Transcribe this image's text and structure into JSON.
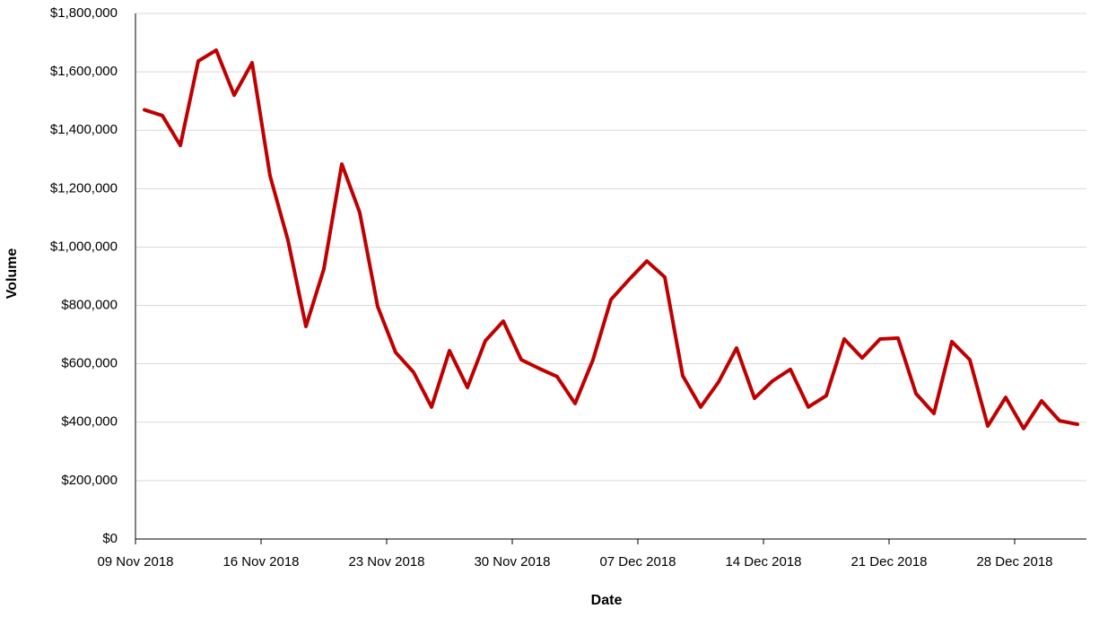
{
  "chart_data": {
    "type": "line",
    "x_label": "Date",
    "y_label": "Volume",
    "categories": [
      "09 Nov 2018",
      null,
      null,
      null,
      null,
      null,
      null,
      "16 Nov 2018",
      null,
      null,
      null,
      null,
      null,
      null,
      "23 Nov 2018",
      null,
      null,
      null,
      null,
      null,
      null,
      "30 Nov 2018",
      null,
      null,
      null,
      null,
      null,
      null,
      "07 Dec 2018",
      null,
      null,
      null,
      null,
      null,
      null,
      "14 Dec 2018",
      null,
      null,
      null,
      null,
      null,
      null,
      "21 Dec 2018",
      null,
      null,
      null,
      null,
      null,
      null,
      "28 Dec 2018",
      null,
      null,
      null
    ],
    "series": [
      {
        "name": "Volume",
        "color": "#c00000",
        "values": [
          1470000,
          1450000,
          1348000,
          1637000,
          1674000,
          1520000,
          1631000,
          1244000,
          1023000,
          728000,
          925000,
          1284000,
          1118000,
          796000,
          639000,
          571000,
          452000,
          645000,
          519000,
          679000,
          746000,
          614000,
          584000,
          556000,
          464000,
          614000,
          820000,
          888000,
          952000,
          897000,
          559000,
          452000,
          538000,
          654000,
          482000,
          541000,
          581000,
          452000,
          491000,
          685000,
          620000,
          685000,
          688000,
          498000,
          430000,
          676000,
          614000,
          387000,
          485000,
          378000,
          473000,
          405000,
          393000
        ]
      }
    ],
    "ylim": [
      0,
      1800000
    ],
    "yticks": [
      {
        "value": 0,
        "label": "$0"
      },
      {
        "value": 200000,
        "label": "$200,000"
      },
      {
        "value": 400000,
        "label": "$400,000"
      },
      {
        "value": 600000,
        "label": "$600,000"
      },
      {
        "value": 800000,
        "label": "$800,000"
      },
      {
        "value": 1000000,
        "label": "$1,000,000"
      },
      {
        "value": 1200000,
        "label": "$1,200,000"
      },
      {
        "value": 1400000,
        "label": "$1,400,000"
      },
      {
        "value": 1600000,
        "label": "$1,600,000"
      },
      {
        "value": 1800000,
        "label": "$1,800,000"
      }
    ],
    "grid": true
  }
}
